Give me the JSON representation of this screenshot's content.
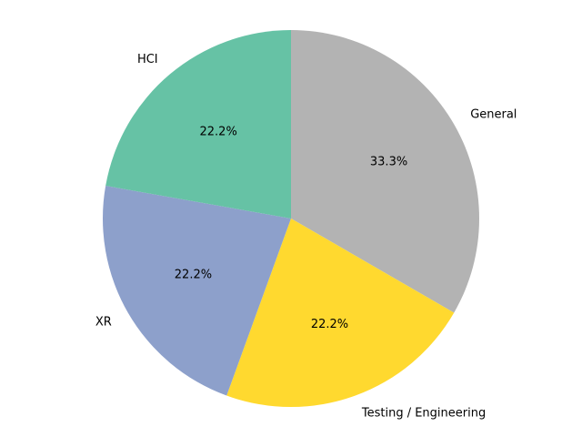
{
  "chart_data": {
    "type": "pie",
    "title": "",
    "start_angle_deg": 90,
    "direction": "clockwise",
    "slices": [
      {
        "label": "General",
        "value": 33.3,
        "pct_label": "33.3%",
        "color": "#b3b3b3"
      },
      {
        "label": "Testing / Engineering",
        "value": 22.2,
        "pct_label": "22.2%",
        "color": "#ffd92f"
      },
      {
        "label": "XR",
        "value": 22.2,
        "pct_label": "22.2%",
        "color": "#8da0cb"
      },
      {
        "label": "HCI",
        "value": 22.2,
        "pct_label": "22.2%",
        "color": "#66c2a5"
      }
    ]
  }
}
